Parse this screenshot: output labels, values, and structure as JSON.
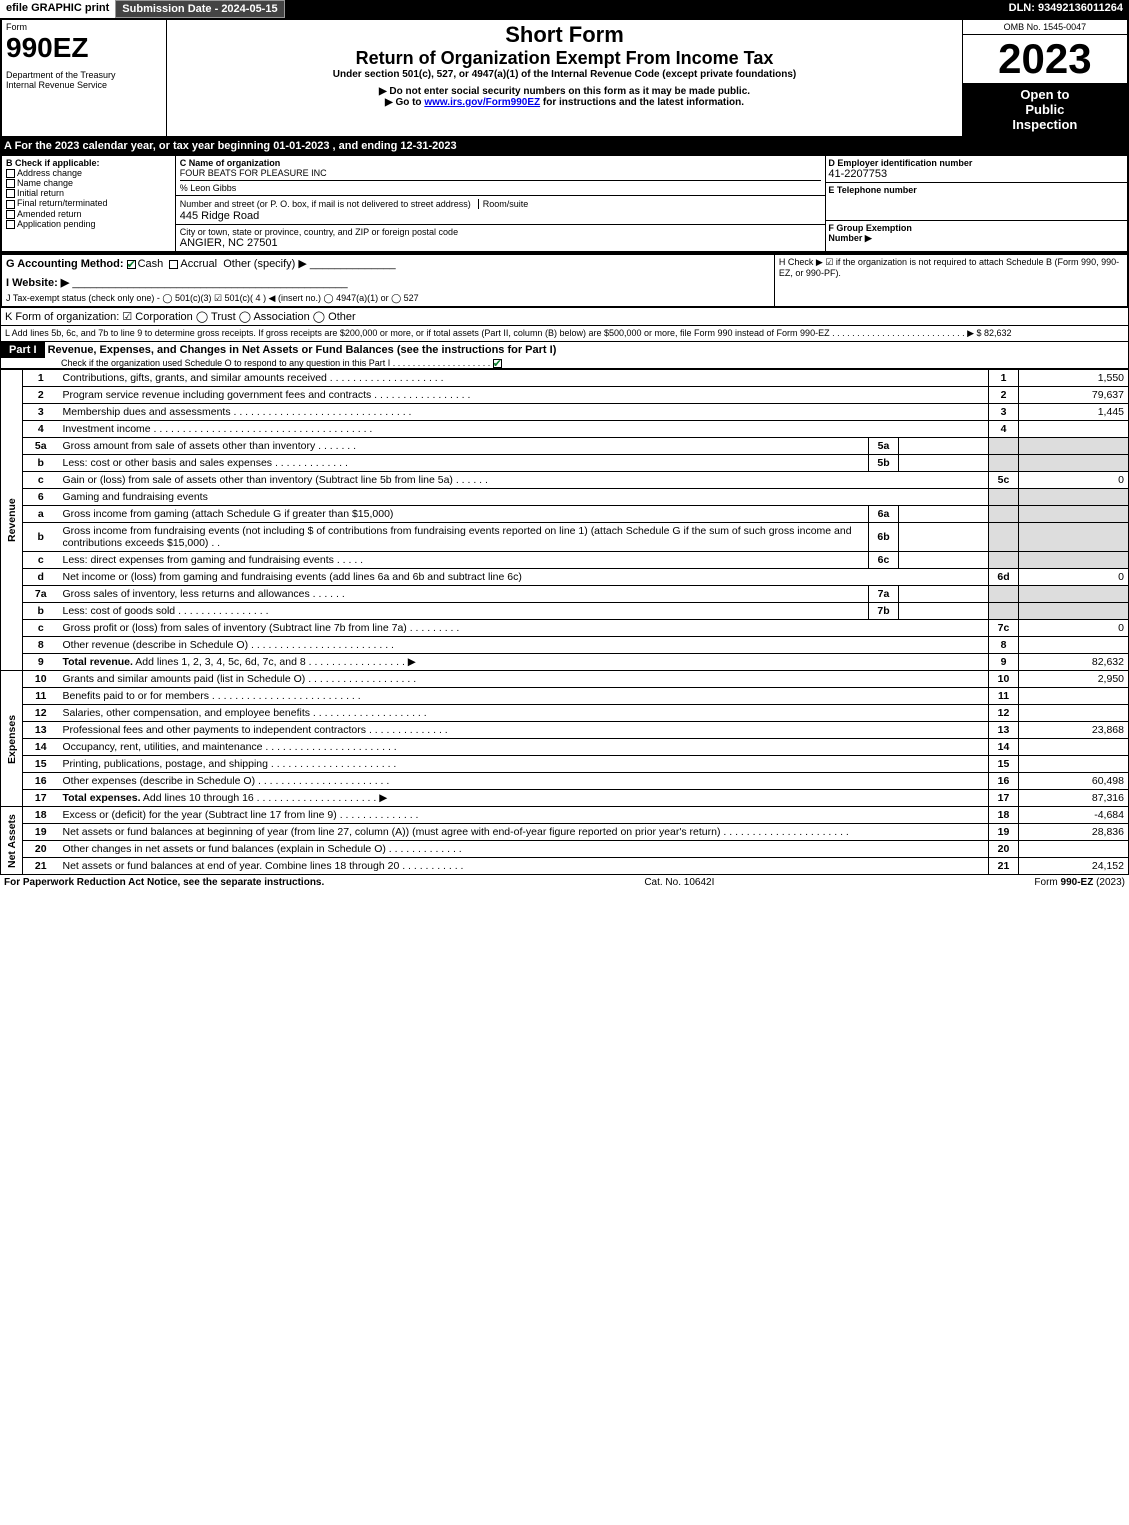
{
  "topbar": {
    "efile": "efile GRAPHIC print",
    "subdate_label": "Submission Date - 2024-05-15",
    "dln": "DLN: 93492136011264"
  },
  "header": {
    "form_word": "Form",
    "form_no": "990EZ",
    "dept": "Department of the Treasury\nInternal Revenue Service",
    "title": "Short Form",
    "subtitle": "Return of Organization Exempt From Income Tax",
    "under": "Under section 501(c), 527, or 4947(a)(1) of the Internal Revenue Code (except private foundations)",
    "warn": "▶ Do not enter social security numbers on this form as it may be made public.",
    "goto_pre": "▶ Go to ",
    "goto_link": "www.irs.gov/Form990EZ",
    "goto_post": " for instructions and the latest information.",
    "omb": "OMB No. 1545-0047",
    "year": "2023",
    "open": "Open to\nPublic\nInspection"
  },
  "A": "A  For the 2023 calendar year, or tax year beginning 01-01-2023 , and ending 12-31-2023",
  "B": {
    "label": "B  Check if applicable:",
    "items": [
      "Address change",
      "Name change",
      "Initial return",
      "Final return/terminated",
      "Amended return",
      "Application pending"
    ]
  },
  "C": {
    "label": "C Name of organization",
    "name": "FOUR BEATS FOR PLEASURE INC",
    "care": "% Leon Gibbs",
    "addr_label": "Number and street (or P. O. box, if mail is not delivered to street address)",
    "room": "Room/suite",
    "addr": "445 Ridge Road",
    "city_label": "City or town, state or province, country, and ZIP or foreign postal code",
    "city": "ANGIER, NC  27501"
  },
  "D": {
    "label": "D Employer identification number",
    "value": "41-2207753"
  },
  "E": {
    "label": "E Telephone number",
    "value": ""
  },
  "F": {
    "label": "F Group Exemption\nNumber   ▶",
    "value": ""
  },
  "G": {
    "label": "G Accounting Method:",
    "cash": "Cash",
    "accrual": "Accrual",
    "other": "Other (specify) ▶"
  },
  "H": "H   Check ▶  ☑  if the organization is not required to attach Schedule B (Form 990, 990-EZ, or 990-PF).",
  "I": "I Website: ▶",
  "J": "J Tax-exempt status (check only one) -  ◯ 501(c)(3)  ☑ 501(c)( 4 ) ◀ (insert no.)  ◯ 4947(a)(1) or  ◯ 527",
  "K": "K Form of organization:   ☑ Corporation   ◯ Trust   ◯ Association   ◯ Other",
  "L": {
    "text": "L Add lines 5b, 6c, and 7b to line 9 to determine gross receipts. If gross receipts are $200,000 or more, or if total assets (Part II, column (B) below) are $500,000 or more, file Form 990 instead of Form 990-EZ  .  .  .  .  .  .  .  .  .  .  .  .  .  .  .  .  .  .  .  .  .  .  .  .  .  .  .  ▶ $ ",
    "value": "82,632"
  },
  "part1": {
    "label": "Part I",
    "title": "Revenue, Expenses, and Changes in Net Assets or Fund Balances (see the instructions for Part I)",
    "check_line": "Check if the organization used Schedule O to respond to any question in this Part I .  .  .  .  .  .  .  .  .  .  .  .  .  .  .  .  .  .  .  . ",
    "check_checked": true
  },
  "sections": {
    "revenue": "Revenue",
    "expenses": "Expenses",
    "netassets": "Net Assets"
  },
  "rows": [
    {
      "n": "1",
      "desc": "Contributions, gifts, grants, and similar amounts received  .  .  .  .  .  .  .  .  .  .  .  .  .  .  .  .  .  .  .  .",
      "rn": "1",
      "val": "1,550"
    },
    {
      "n": "2",
      "desc": "Program service revenue including government fees and contracts  .  .  .  .  .  .  .  .  .  .  .  .  .  .  .  .  .",
      "rn": "2",
      "val": "79,637"
    },
    {
      "n": "3",
      "desc": "Membership dues and assessments  .  .  .  .  .  .  .  .  .  .  .  .  .  .  .  .  .  .  .  .  .  .  .  .  .  .  .  .  .  .  .",
      "rn": "3",
      "val": "1,445"
    },
    {
      "n": "4",
      "desc": "Investment income  .  .  .  .  .  .  .  .  .  .  .  .  .  .  .  .  .  .  .  .  .  .  .  .  .  .  .  .  .  .  .  .  .  .  .  .  .  .",
      "rn": "4",
      "val": ""
    },
    {
      "n": "5a",
      "desc": "Gross amount from sale of assets other than inventory  .  .  .  .  .  .  .",
      "sub": "5a",
      "subval": ""
    },
    {
      "n": "b",
      "desc": "Less: cost or other basis and sales expenses  .  .  .  .  .  .  .  .  .  .  .  .  .",
      "sub": "5b",
      "subval": ""
    },
    {
      "n": "c",
      "desc": "Gain or (loss) from sale of assets other than inventory (Subtract line 5b from line 5a)  .  .  .  .  .  .",
      "rn": "5c",
      "val": "0"
    },
    {
      "n": "6",
      "desc": "Gaming and fundraising events"
    },
    {
      "n": "a",
      "desc": "Gross income from gaming (attach Schedule G if greater than $15,000)",
      "sub": "6a",
      "subval": ""
    },
    {
      "n": "b",
      "desc": "Gross income from fundraising events (not including $                  of contributions from fundraising events reported on line 1) (attach Schedule G if the sum of such gross income and contributions exceeds $15,000)   .   .",
      "sub": "6b",
      "subval": ""
    },
    {
      "n": "c",
      "desc": "Less: direct expenses from gaming and fundraising events   .  .  .  .  .",
      "sub": "6c",
      "subval": ""
    },
    {
      "n": "d",
      "desc": "Net income or (loss) from gaming and fundraising events (add lines 6a and 6b and subtract line 6c)",
      "rn": "6d",
      "val": "0"
    },
    {
      "n": "7a",
      "desc": "Gross sales of inventory, less returns and allowances  .  .  .  .  .  .",
      "sub": "7a",
      "subval": ""
    },
    {
      "n": "b",
      "desc": "Less: cost of goods sold     .  .  .  .  .  .  .  .  .  .  .  .  .  .  .  .",
      "sub": "7b",
      "subval": ""
    },
    {
      "n": "c",
      "desc": "Gross profit or (loss) from sales of inventory (Subtract line 7b from line 7a)  .  .  .  .  .  .  .  .  .",
      "rn": "7c",
      "val": "0"
    },
    {
      "n": "8",
      "desc": "Other revenue (describe in Schedule O)  .  .  .  .  .  .  .  .  .  .  .  .  .  .  .  .  .  .  .  .  .  .  .  .  .",
      "rn": "8",
      "val": ""
    },
    {
      "n": "9",
      "desc": "Total revenue. Add lines 1, 2, 3, 4, 5c, 6d, 7c, and 8   .  .  .  .  .  .  .  .  .  .  .  .  .  .  .  .  .     ▶",
      "rn": "9",
      "val": "82,632",
      "bold": true
    }
  ],
  "exp_rows": [
    {
      "n": "10",
      "desc": "Grants and similar amounts paid (list in Schedule O)  .  .  .  .  .  .  .  .  .  .  .  .  .  .  .  .  .  .  .",
      "rn": "10",
      "val": "2,950"
    },
    {
      "n": "11",
      "desc": "Benefits paid to or for members     .  .  .  .  .  .  .  .  .  .  .  .  .  .  .  .  .  .  .  .  .  .  .  .  .  .",
      "rn": "11",
      "val": ""
    },
    {
      "n": "12",
      "desc": "Salaries, other compensation, and employee benefits  .  .  .  .  .  .  .  .  .  .  .  .  .  .  .  .  .  .  .  .",
      "rn": "12",
      "val": ""
    },
    {
      "n": "13",
      "desc": "Professional fees and other payments to independent contractors  .  .  .  .  .  .  .  .  .  .  .  .  .  .",
      "rn": "13",
      "val": "23,868"
    },
    {
      "n": "14",
      "desc": "Occupancy, rent, utilities, and maintenance .  .  .  .  .  .  .  .  .  .  .  .  .  .  .  .  .  .  .  .  .  .  .",
      "rn": "14",
      "val": ""
    },
    {
      "n": "15",
      "desc": "Printing, publications, postage, and shipping .  .  .  .  .  .  .  .  .  .  .  .  .  .  .  .  .  .  .  .  .  .",
      "rn": "15",
      "val": ""
    },
    {
      "n": "16",
      "desc": "Other expenses (describe in Schedule O)    .  .  .  .  .  .  .  .  .  .  .  .  .  .  .  .  .  .  .  .  .  .  .",
      "rn": "16",
      "val": "60,498"
    },
    {
      "n": "17",
      "desc": "Total expenses. Add lines 10 through 16     .  .  .  .  .  .  .  .  .  .  .  .  .  .  .  .  .  .  .  .  .   ▶",
      "rn": "17",
      "val": "87,316",
      "bold": true
    }
  ],
  "na_rows": [
    {
      "n": "18",
      "desc": "Excess or (deficit) for the year (Subtract line 17 from line 9)       .  .  .  .  .  .  .  .  .  .  .  .  .  .",
      "rn": "18",
      "val": "-4,684"
    },
    {
      "n": "19",
      "desc": "Net assets or fund balances at beginning of year (from line 27, column (A)) (must agree with end-of-year figure reported on prior year's return) .  .  .  .  .  .  .  .  .  .  .  .  .  .  .  .  .  .  .  .  .  .",
      "rn": "19",
      "val": "28,836"
    },
    {
      "n": "20",
      "desc": "Other changes in net assets or fund balances (explain in Schedule O) .  .  .  .  .  .  .  .  .  .  .  .  .",
      "rn": "20",
      "val": ""
    },
    {
      "n": "21",
      "desc": "Net assets or fund balances at end of year. Combine lines 18 through 20 .  .  .  .  .  .  .  .  .  .  .",
      "rn": "21",
      "val": "24,152"
    }
  ],
  "footer": {
    "left": "For Paperwork Reduction Act Notice, see the separate instructions.",
    "mid": "Cat. No. 10642I",
    "right_pre": "Form ",
    "right_bold": "990-EZ",
    "right_post": " (2023)"
  }
}
